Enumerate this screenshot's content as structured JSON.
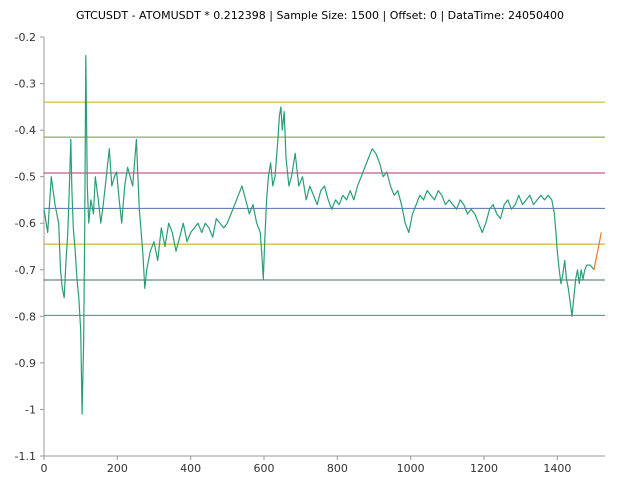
{
  "chart_data": {
    "type": "line",
    "title": "GTCUSDT - ATOMUSDT * 0.212398 | Sample Size: 1500 | Offset: 0 | DataTime: 24050400",
    "xlabel": "",
    "ylabel": "",
    "xlim": [
      0,
      1530
    ],
    "ylim": [
      -1.1,
      -0.2
    ],
    "x_ticks": [
      0,
      200,
      400,
      600,
      800,
      1000,
      1200,
      1400
    ],
    "x_tick_labels": [
      "0",
      "200",
      "400",
      "600",
      "800",
      "1000",
      "1200",
      "1400"
    ],
    "y_ticks": [
      -0.2,
      -0.3,
      -0.4,
      -0.5,
      -0.6,
      -0.7,
      -0.8,
      -0.9,
      -1,
      -1.1
    ],
    "y_tick_labels": [
      "-0.2",
      "-0.3",
      "-0.4",
      "-0.5",
      "-0.6",
      "-0.7",
      "-0.8",
      "-0.9",
      "-1",
      "-1.1"
    ],
    "grid": false,
    "legend": "none",
    "series": [
      {
        "color": "#2a9d78",
        "points": [
          [
            0,
            -0.57
          ],
          [
            10,
            -0.62
          ],
          [
            20,
            -0.5
          ],
          [
            30,
            -0.56
          ],
          [
            40,
            -0.6
          ],
          [
            45,
            -0.7
          ],
          [
            50,
            -0.74
          ],
          [
            55,
            -0.76
          ],
          [
            60,
            -0.68
          ],
          [
            65,
            -0.62
          ],
          [
            70,
            -0.5
          ],
          [
            73,
            -0.42
          ],
          [
            76,
            -0.53
          ],
          [
            80,
            -0.61
          ],
          [
            85,
            -0.66
          ],
          [
            90,
            -0.72
          ],
          [
            95,
            -0.76
          ],
          [
            100,
            -0.83
          ],
          [
            104,
            -1.01
          ],
          [
            108,
            -0.86
          ],
          [
            111,
            -0.62
          ],
          [
            114,
            -0.24
          ],
          [
            118,
            -0.52
          ],
          [
            122,
            -0.6
          ],
          [
            128,
            -0.55
          ],
          [
            135,
            -0.58
          ],
          [
            140,
            -0.5
          ],
          [
            148,
            -0.55
          ],
          [
            155,
            -0.6
          ],
          [
            160,
            -0.57
          ],
          [
            170,
            -0.5
          ],
          [
            178,
            -0.44
          ],
          [
            185,
            -0.52
          ],
          [
            192,
            -0.5
          ],
          [
            198,
            -0.49
          ],
          [
            205,
            -0.55
          ],
          [
            212,
            -0.6
          ],
          [
            220,
            -0.52
          ],
          [
            228,
            -0.48
          ],
          [
            235,
            -0.5
          ],
          [
            242,
            -0.52
          ],
          [
            248,
            -0.46
          ],
          [
            252,
            -0.42
          ],
          [
            256,
            -0.5
          ],
          [
            260,
            -0.57
          ],
          [
            265,
            -0.62
          ],
          [
            270,
            -0.67
          ],
          [
            275,
            -0.74
          ],
          [
            280,
            -0.7
          ],
          [
            290,
            -0.66
          ],
          [
            300,
            -0.64
          ],
          [
            310,
            -0.68
          ],
          [
            320,
            -0.61
          ],
          [
            330,
            -0.65
          ],
          [
            340,
            -0.6
          ],
          [
            350,
            -0.62
          ],
          [
            360,
            -0.66
          ],
          [
            370,
            -0.63
          ],
          [
            380,
            -0.6
          ],
          [
            390,
            -0.64
          ],
          [
            400,
            -0.62
          ],
          [
            410,
            -0.61
          ],
          [
            420,
            -0.6
          ],
          [
            430,
            -0.62
          ],
          [
            440,
            -0.6
          ],
          [
            450,
            -0.61
          ],
          [
            460,
            -0.63
          ],
          [
            470,
            -0.59
          ],
          [
            480,
            -0.6
          ],
          [
            490,
            -0.61
          ],
          [
            500,
            -0.6
          ],
          [
            510,
            -0.58
          ],
          [
            520,
            -0.56
          ],
          [
            530,
            -0.54
          ],
          [
            540,
            -0.52
          ],
          [
            550,
            -0.55
          ],
          [
            560,
            -0.58
          ],
          [
            570,
            -0.56
          ],
          [
            580,
            -0.6
          ],
          [
            590,
            -0.62
          ],
          [
            595,
            -0.68
          ],
          [
            598,
            -0.72
          ],
          [
            602,
            -0.64
          ],
          [
            607,
            -0.55
          ],
          [
            612,
            -0.5
          ],
          [
            618,
            -0.47
          ],
          [
            624,
            -0.52
          ],
          [
            630,
            -0.5
          ],
          [
            638,
            -0.42
          ],
          [
            642,
            -0.37
          ],
          [
            646,
            -0.35
          ],
          [
            650,
            -0.4
          ],
          [
            655,
            -0.36
          ],
          [
            660,
            -0.46
          ],
          [
            668,
            -0.52
          ],
          [
            675,
            -0.5
          ],
          [
            685,
            -0.45
          ],
          [
            695,
            -0.52
          ],
          [
            705,
            -0.5
          ],
          [
            715,
            -0.55
          ],
          [
            725,
            -0.52
          ],
          [
            735,
            -0.54
          ],
          [
            745,
            -0.56
          ],
          [
            755,
            -0.53
          ],
          [
            765,
            -0.52
          ],
          [
            775,
            -0.55
          ],
          [
            785,
            -0.57
          ],
          [
            795,
            -0.55
          ],
          [
            805,
            -0.56
          ],
          [
            815,
            -0.54
          ],
          [
            825,
            -0.55
          ],
          [
            835,
            -0.53
          ],
          [
            845,
            -0.55
          ],
          [
            855,
            -0.52
          ],
          [
            865,
            -0.5
          ],
          [
            875,
            -0.48
          ],
          [
            885,
            -0.46
          ],
          [
            895,
            -0.44
          ],
          [
            905,
            -0.45
          ],
          [
            915,
            -0.47
          ],
          [
            925,
            -0.5
          ],
          [
            935,
            -0.49
          ],
          [
            945,
            -0.52
          ],
          [
            955,
            -0.54
          ],
          [
            965,
            -0.53
          ],
          [
            975,
            -0.56
          ],
          [
            985,
            -0.6
          ],
          [
            995,
            -0.62
          ],
          [
            1005,
            -0.58
          ],
          [
            1015,
            -0.56
          ],
          [
            1025,
            -0.54
          ],
          [
            1035,
            -0.55
          ],
          [
            1045,
            -0.53
          ],
          [
            1055,
            -0.54
          ],
          [
            1065,
            -0.55
          ],
          [
            1075,
            -0.53
          ],
          [
            1085,
            -0.54
          ],
          [
            1095,
            -0.56
          ],
          [
            1105,
            -0.55
          ],
          [
            1115,
            -0.56
          ],
          [
            1125,
            -0.57
          ],
          [
            1135,
            -0.55
          ],
          [
            1145,
            -0.56
          ],
          [
            1155,
            -0.58
          ],
          [
            1165,
            -0.57
          ],
          [
            1175,
            -0.58
          ],
          [
            1185,
            -0.6
          ],
          [
            1195,
            -0.62
          ],
          [
            1205,
            -0.6
          ],
          [
            1215,
            -0.57
          ],
          [
            1225,
            -0.56
          ],
          [
            1235,
            -0.58
          ],
          [
            1245,
            -0.59
          ],
          [
            1255,
            -0.56
          ],
          [
            1265,
            -0.55
          ],
          [
            1275,
            -0.57
          ],
          [
            1285,
            -0.56
          ],
          [
            1295,
            -0.54
          ],
          [
            1305,
            -0.56
          ],
          [
            1315,
            -0.55
          ],
          [
            1325,
            -0.54
          ],
          [
            1335,
            -0.56
          ],
          [
            1345,
            -0.55
          ],
          [
            1355,
            -0.54
          ],
          [
            1365,
            -0.55
          ],
          [
            1375,
            -0.54
          ],
          [
            1385,
            -0.55
          ],
          [
            1392,
            -0.58
          ],
          [
            1396,
            -0.62
          ],
          [
            1400,
            -0.66
          ],
          [
            1405,
            -0.7
          ],
          [
            1410,
            -0.73
          ],
          [
            1415,
            -0.71
          ],
          [
            1420,
            -0.68
          ],
          [
            1425,
            -0.72
          ],
          [
            1430,
            -0.74
          ],
          [
            1435,
            -0.77
          ],
          [
            1440,
            -0.8
          ],
          [
            1445,
            -0.76
          ],
          [
            1450,
            -0.72
          ],
          [
            1455,
            -0.7
          ],
          [
            1460,
            -0.73
          ],
          [
            1465,
            -0.7
          ],
          [
            1470,
            -0.72
          ],
          [
            1475,
            -0.7
          ],
          [
            1480,
            -0.69
          ],
          [
            1490,
            -0.69
          ],
          [
            1500,
            -0.7
          ]
        ]
      },
      {
        "color": "#e07b28",
        "points": [
          [
            1500,
            -0.7
          ],
          [
            1505,
            -0.68
          ],
          [
            1510,
            -0.66
          ],
          [
            1515,
            -0.64
          ],
          [
            1520,
            -0.62
          ]
        ]
      }
    ],
    "horizontal_lines": [
      {
        "y": -0.34,
        "color": "#c8b400"
      },
      {
        "y": -0.415,
        "color": "#6e9e1e"
      },
      {
        "y": -0.492,
        "color": "#c22d6e"
      },
      {
        "y": -0.568,
        "color": "#5a6ea8"
      },
      {
        "y": -0.645,
        "color": "#c89a1e"
      },
      {
        "y": -0.722,
        "color": "#3c6a5a"
      },
      {
        "y": -0.798,
        "color": "#2a9d78"
      }
    ],
    "axis_color": "#999999"
  }
}
